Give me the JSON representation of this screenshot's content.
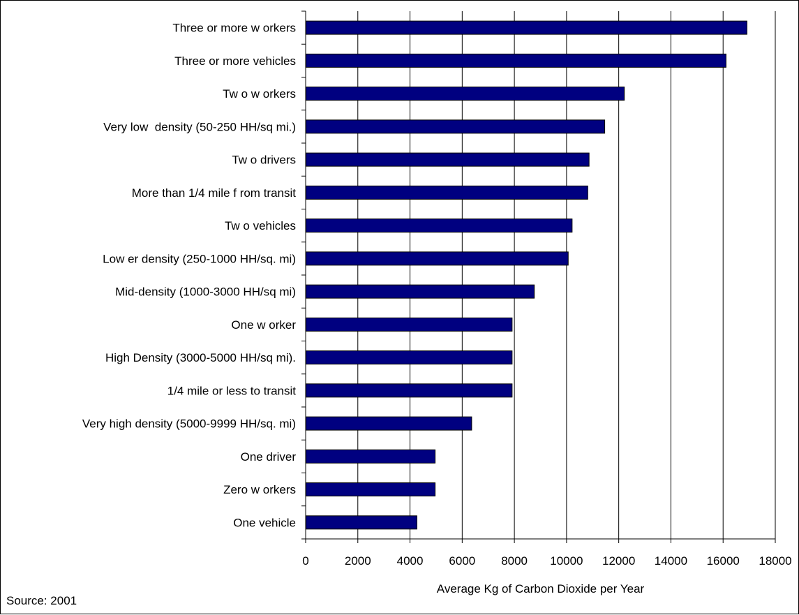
{
  "chart_data": {
    "type": "bar",
    "orientation": "horizontal",
    "categories": [
      "Three or more w orkers",
      "Three or more vehicles",
      "Tw o w orkers",
      "Very low  density (50-250 HH/sq mi.)",
      "Tw o drivers",
      "More than 1/4 mile f rom transit",
      "Tw o vehicles",
      "Low er density (250-1000 HH/sq. mi)",
      "Mid-density (1000-3000 HH/sq mi)",
      "One w orker",
      "High Density (3000-5000 HH/sq mi).",
      "1/4 mile or less to transit",
      "Very high density (5000-9999 HH/sq. mi)",
      "One driver",
      "Zero w orkers",
      "One vehicle"
    ],
    "values": [
      16900,
      16100,
      12200,
      11450,
      10850,
      10800,
      10200,
      10050,
      8750,
      7900,
      7900,
      7900,
      6350,
      4950,
      4950,
      4250
    ],
    "xlabel": "Average Kg of Carbon Dioxide per Year",
    "ylabel": "",
    "title": "",
    "xlim": [
      0,
      18000
    ],
    "xticks": [
      "0",
      "2000",
      "4000",
      "6000",
      "8000",
      "10000",
      "12000",
      "14000",
      "16000",
      "18000"
    ],
    "grid": "vertical",
    "bar_color": "#000080"
  },
  "footer": {
    "source": "Source: 2001"
  }
}
